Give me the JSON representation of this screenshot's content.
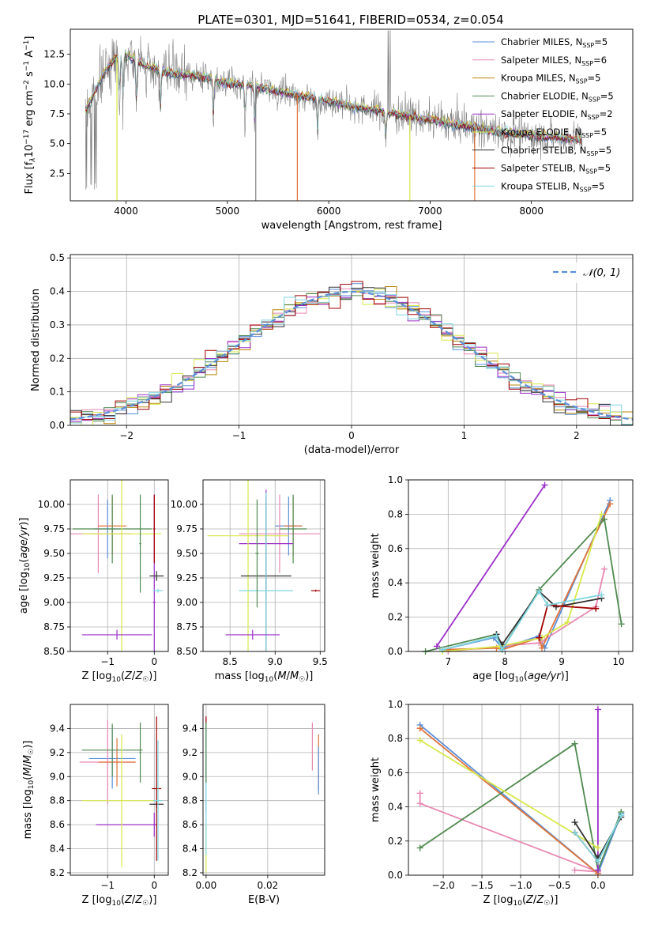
{
  "figure": {
    "title": "PLATE=0301, MJD=51641, FIBERID=0534, z=0.054"
  },
  "legend_entries": [
    {
      "name": "Chabrier MILES",
      "n_ssp": 5,
      "color": "#5b8fd9"
    },
    {
      "name": "Salpeter MILES",
      "n_ssp": 6,
      "color": "#e887b3"
    },
    {
      "name": "Kroupa MILES",
      "n_ssp": 5,
      "color": "#b8860b"
    },
    {
      "name": "Chabrier ELODIE",
      "n_ssp": 5,
      "color": "#4f8a4f"
    },
    {
      "name": "Salpeter ELODIE",
      "n_ssp": 2,
      "color": "#9b30c8"
    },
    {
      "name": "Kroupa ELODIE",
      "n_ssp": 5,
      "color": "#d8e84a"
    },
    {
      "name": "Chabrier STELIB",
      "n_ssp": 5,
      "color": "#333333"
    },
    {
      "name": "Salpeter STELIB",
      "n_ssp": 5,
      "color": "#a00000"
    },
    {
      "name": "Kroupa STELIB",
      "n_ssp": 5,
      "color": "#7dd6e0"
    }
  ],
  "chart_data": [
    {
      "id": "spectrum",
      "type": "line",
      "xlabel": "wavelength [Angstrom, rest frame]",
      "ylabel": "Flux [f_λ10^-17 erg cm^-2 s^-1 A^-1]",
      "xlim": [
        3450,
        9000
      ],
      "ylim": [
        0.2,
        14.6
      ],
      "xticks": [
        4000,
        5000,
        6000,
        7000,
        8000
      ],
      "yticks": [
        2.5,
        5.0,
        7.5,
        10.0,
        12.5
      ],
      "grid": false,
      "legend": "top-right",
      "data_color": "#808080",
      "continuum": [
        [
          3600,
          7.8
        ],
        [
          3650,
          8.6
        ],
        [
          3700,
          9.5
        ],
        [
          3800,
          11.2
        ],
        [
          3900,
          12.2
        ],
        [
          4000,
          12.4
        ],
        [
          4100,
          12.0
        ],
        [
          4200,
          11.5
        ],
        [
          4400,
          11.0
        ],
        [
          4600,
          10.8
        ],
        [
          4800,
          10.5
        ],
        [
          5000,
          10.1
        ],
        [
          5200,
          9.9
        ],
        [
          5400,
          9.6
        ],
        [
          5600,
          9.2
        ],
        [
          5800,
          8.9
        ],
        [
          6000,
          8.6
        ],
        [
          6200,
          8.2
        ],
        [
          6400,
          7.9
        ],
        [
          6600,
          7.6
        ],
        [
          6800,
          7.3
        ],
        [
          7000,
          7.0
        ],
        [
          7200,
          6.7
        ],
        [
          7400,
          6.4
        ],
        [
          7600,
          6.1
        ],
        [
          7800,
          5.9
        ],
        [
          8000,
          5.7
        ],
        [
          8200,
          5.6
        ],
        [
          8400,
          5.4
        ],
        [
          8500,
          5.3
        ]
      ],
      "absorption_lines": [
        3934,
        3969,
        4102,
        4340,
        4861,
        5175,
        5270,
        5890,
        6563
      ],
      "model_dips": [
        [
          3910,
          0.2,
          "#d8e84a"
        ],
        [
          5280,
          0.2,
          "#808080"
        ],
        [
          5690,
          0.2,
          "#e0733a"
        ],
        [
          6800,
          0.2,
          "#d8e84a"
        ],
        [
          7440,
          0.2,
          "#e0733a"
        ]
      ]
    },
    {
      "id": "residuals",
      "type": "line",
      "xlabel": "(data-model)/error",
      "ylabel": "Normed distribution",
      "xlim": [
        -2.5,
        2.5
      ],
      "ylim": [
        0,
        0.51
      ],
      "xticks": [
        -2,
        -1,
        0,
        1,
        2
      ],
      "yticks": [
        0.0,
        0.1,
        0.2,
        0.3,
        0.4,
        0.5
      ],
      "grid": true,
      "legend": "top-right",
      "legend_label": "𝒩(0, 1)",
      "normal_color": "#5b8fd9",
      "bin_width": 0.1
    },
    {
      "id": "age_vs_Z",
      "type": "scatter",
      "xlabel": "Z [log10(Z/Z☉)]",
      "ylabel": "age [log10(age/yr)]",
      "xlim": [
        -1.8,
        0.3
      ],
      "ylim": [
        8.5,
        10.25
      ],
      "xticks": [
        -1,
        0
      ],
      "yticks": [
        8.5,
        8.75,
        9.0,
        9.25,
        9.5,
        9.75,
        10.0
      ],
      "grid": true,
      "errorbars": [
        {
          "x": -1.0,
          "xerr": 0.3,
          "y": 9.75,
          "yerr": 0.3,
          "c": "#5b8fd9"
        },
        {
          "x": -1.2,
          "xerr": 0.7,
          "y": 9.7,
          "yerr": 0.4,
          "c": "#e887b3"
        },
        {
          "x": -0.9,
          "xerr": 0.3,
          "y": 9.78,
          "yerr": 0.3,
          "c": "#e0733a"
        },
        {
          "x": -0.9,
          "xerr": 0.85,
          "y": 9.75,
          "yerr": 0.35,
          "c": "#4f8a4f"
        },
        {
          "x": 0.0,
          "xerr": 0.03,
          "y": 9.0,
          "yerr": 1.1,
          "c": "#9b30c8"
        },
        {
          "x": -0.7,
          "xerr": 0.85,
          "y": 9.7,
          "yerr": 1.2,
          "c": "#d8e84a"
        },
        {
          "x": 0.05,
          "xerr": 0.15,
          "y": 9.27,
          "yerr": 0.05,
          "c": "#333333"
        },
        {
          "x": 0.0,
          "xerr": 0.02,
          "y": 9.75,
          "yerr": 0.35,
          "c": "#a00000"
        },
        {
          "x": 0.08,
          "xerr": 0.1,
          "y": 9.12,
          "yerr": 0.02,
          "c": "#7dd6e0"
        },
        {
          "x": -0.8,
          "xerr": 0.75,
          "y": 8.67,
          "yerr": 0.05,
          "c": "#9b30c8"
        },
        {
          "x": -0.3,
          "xerr": 0.02,
          "y": 9.6,
          "yerr": 0.5,
          "c": "#4f8a4f"
        }
      ]
    },
    {
      "id": "age_vs_mass",
      "type": "scatter",
      "xlabel": "mass [log10(M/M☉)]",
      "ylabel": "",
      "xlim": [
        8.2,
        9.55
      ],
      "ylim": [
        8.5,
        10.25
      ],
      "xticks": [
        8.5,
        9.0,
        9.5
      ],
      "yticks": [
        8.5,
        8.75,
        9.0,
        9.25,
        9.5,
        9.75,
        10.0
      ],
      "grid": true,
      "errorbars": [
        {
          "x": 9.15,
          "xerr": 0.15,
          "y": 9.78,
          "yerr": 0.3,
          "c": "#5b8fd9"
        },
        {
          "x": 9.05,
          "xerr": 0.45,
          "y": 9.7,
          "yerr": 0.4,
          "c": "#e887b3"
        },
        {
          "x": 9.2,
          "xerr": 0.1,
          "y": 9.78,
          "yerr": 0.3,
          "c": "#e0733a"
        },
        {
          "x": 9.2,
          "xerr": 0.15,
          "y": 9.75,
          "yerr": 0.35,
          "c": "#4f8a4f"
        },
        {
          "x": 8.9,
          "xerr": 0.3,
          "y": 9.6,
          "yerr": 0.55,
          "c": "#9b30c8"
        },
        {
          "x": 8.7,
          "xerr": 0.45,
          "y": 9.68,
          "yerr": 1.2,
          "c": "#d8e84a"
        },
        {
          "x": 8.9,
          "xerr": 0.28,
          "y": 9.27,
          "yerr": 0.8,
          "c": "#333333"
        },
        {
          "x": 9.45,
          "xerr": 0.05,
          "y": 9.12,
          "yerr": 0.01,
          "c": "#a00000"
        },
        {
          "x": 8.9,
          "xerr": 0.3,
          "y": 9.12,
          "yerr": 1.0,
          "c": "#7dd6e0"
        },
        {
          "x": 8.75,
          "xerr": 0.3,
          "y": 8.67,
          "yerr": 0.05,
          "c": "#9b30c8"
        },
        {
          "x": 8.8,
          "xerr": 0.02,
          "y": 9.5,
          "yerr": 0.55,
          "c": "#4f8a4f"
        }
      ]
    },
    {
      "id": "mass_weight_vs_age",
      "type": "line",
      "xlabel": "age [log10(age/yr)]",
      "ylabel": "mass weight",
      "xlim": [
        6.3,
        10.25
      ],
      "ylim": [
        0,
        1.0
      ],
      "xticks": [
        7,
        8,
        9,
        10
      ],
      "yticks": [
        0.0,
        0.2,
        0.4,
        0.6,
        0.8,
        1.0
      ],
      "grid": true,
      "series": [
        {
          "c": "#5b8fd9",
          "points": [
            [
              6.9,
              0.01
            ],
            [
              7.8,
              0.08
            ],
            [
              7.95,
              0.02
            ],
            [
              8.6,
              0.09
            ],
            [
              8.7,
              0.02
            ],
            [
              9.85,
              0.88
            ]
          ]
        },
        {
          "c": "#e887b3",
          "points": [
            [
              7.0,
              0.0
            ],
            [
              7.9,
              0.03
            ],
            [
              8.6,
              0.05
            ],
            [
              8.65,
              0.06
            ],
            [
              9.6,
              0.26
            ],
            [
              9.75,
              0.48
            ]
          ]
        },
        {
          "c": "#e0733a",
          "points": [
            [
              6.9,
              0.01
            ],
            [
              7.85,
              0.02
            ],
            [
              7.95,
              0.01
            ],
            [
              8.6,
              0.08
            ],
            [
              8.65,
              0.02
            ],
            [
              9.85,
              0.86
            ]
          ]
        },
        {
          "c": "#4f8a4f",
          "points": [
            [
              6.6,
              0.0
            ],
            [
              7.85,
              0.1
            ],
            [
              7.95,
              0.01
            ],
            [
              8.6,
              0.36
            ],
            [
              9.75,
              0.77
            ],
            [
              10.05,
              0.16
            ]
          ]
        },
        {
          "c": "#9b30c8",
          "points": [
            [
              6.8,
              0.03
            ],
            [
              8.7,
              0.97
            ]
          ]
        },
        {
          "c": "#d8e84a",
          "points": [
            [
              6.9,
              0.0
            ],
            [
              7.9,
              0.03
            ],
            [
              8.65,
              0.08
            ],
            [
              9.1,
              0.17
            ],
            [
              9.7,
              0.8
            ]
          ]
        },
        {
          "c": "#333333",
          "points": [
            [
              7.85,
              0.1
            ],
            [
              7.95,
              0.04
            ],
            [
              8.6,
              0.35
            ],
            [
              8.9,
              0.26
            ],
            [
              9.7,
              0.31
            ]
          ]
        },
        {
          "c": "#a00000",
          "points": [
            [
              8.6,
              0.08
            ],
            [
              8.75,
              0.27
            ],
            [
              9.6,
              0.25
            ]
          ]
        },
        {
          "c": "#7dd6e0",
          "points": [
            [
              6.9,
              0.01
            ],
            [
              7.85,
              0.09
            ],
            [
              7.95,
              0.01
            ],
            [
              8.6,
              0.35
            ],
            [
              8.75,
              0.27
            ],
            [
              9.7,
              0.33
            ]
          ]
        }
      ]
    },
    {
      "id": "mass_vs_Z",
      "type": "scatter",
      "xlabel": "Z [log10(Z/Z☉)]",
      "ylabel": "mass [log10(M/M☉)]",
      "xlim": [
        -1.8,
        0.3
      ],
      "ylim": [
        8.18,
        9.6
      ],
      "xticks": [
        -1,
        0
      ],
      "yticks": [
        8.2,
        8.4,
        8.6,
        8.8,
        9.0,
        9.2,
        9.4
      ],
      "grid": true,
      "errorbars": [
        {
          "x": -0.9,
          "xerr": 0.5,
          "y": 9.15,
          "yerr": 0.25,
          "c": "#5b8fd9"
        },
        {
          "x": -1.0,
          "xerr": 0.6,
          "y": 9.12,
          "yerr": 0.35,
          "c": "#e887b3"
        },
        {
          "x": -0.8,
          "xerr": 0.4,
          "y": 9.12,
          "yerr": 0.2,
          "c": "#e0733a"
        },
        {
          "x": -0.9,
          "xerr": 0.65,
          "y": 9.22,
          "yerr": 0.22,
          "c": "#4f8a4f"
        },
        {
          "x": -0.6,
          "xerr": 0.65,
          "y": 8.6,
          "yerr": 0.0,
          "c": "#9b30c8"
        },
        {
          "x": -0.7,
          "xerr": 0.85,
          "y": 8.8,
          "yerr": 0.55,
          "c": "#d8e84a"
        },
        {
          "x": 0.05,
          "xerr": 0.15,
          "y": 8.77,
          "yerr": 0.03,
          "c": "#333333"
        },
        {
          "x": 0.05,
          "xerr": 0.1,
          "y": 8.9,
          "yerr": 0.6,
          "c": "#a00000"
        },
        {
          "x": 0.08,
          "xerr": 0.1,
          "y": 8.8,
          "yerr": 0.5,
          "c": "#7dd6e0"
        },
        {
          "x": -0.3,
          "xerr": 0.02,
          "y": 9.2,
          "yerr": 0.25,
          "c": "#4f8a4f"
        },
        {
          "x": 0.0,
          "xerr": 0.02,
          "y": 8.6,
          "yerr": 0.1,
          "c": "#9b30c8"
        }
      ]
    },
    {
      "id": "mass_vs_ebv",
      "type": "scatter",
      "xlabel": "E(B-V)",
      "ylabel": "",
      "xlim": [
        -0.001,
        0.0385
      ],
      "ylim": [
        8.18,
        9.6
      ],
      "xticks": [
        0.0,
        0.02
      ],
      "yticks": [
        8.2,
        8.4,
        8.6,
        8.8,
        9.0,
        9.2,
        9.4
      ],
      "grid": true,
      "errorbars": [
        {
          "x": 0.0,
          "xerr": 0,
          "y": 9.1,
          "yerr": 0.4,
          "c": "#5b8fd9"
        },
        {
          "x": 0.0,
          "xerr": 0,
          "y": 8.4,
          "yerr": 0.2,
          "c": "#d8e84a"
        },
        {
          "x": 0.0,
          "xerr": 0,
          "y": 9.45,
          "yerr": 0.05,
          "c": "#a00000"
        },
        {
          "x": 0.0,
          "xerr": 0,
          "y": 8.9,
          "yerr": 0.55,
          "c": "#7dd6e0"
        },
        {
          "x": 0.0,
          "xerr": 0,
          "y": 9.2,
          "yerr": 0.25,
          "c": "#4f8a4f"
        },
        {
          "x": 0.0345,
          "xerr": 0,
          "y": 9.25,
          "yerr": 0.2,
          "c": "#e887b3"
        },
        {
          "x": 0.0365,
          "xerr": 0,
          "y": 9.12,
          "yerr": 0.23,
          "c": "#e0733a"
        },
        {
          "x": 0.0365,
          "xerr": 0,
          "y": 9.05,
          "yerr": 0.2,
          "c": "#5b8fd9"
        }
      ]
    },
    {
      "id": "mass_weight_vs_Z",
      "type": "line",
      "xlabel": "Z [log10(Z/Z☉)]",
      "ylabel": "mass weight",
      "xlim": [
        -2.45,
        0.45
      ],
      "ylim": [
        0,
        1.0
      ],
      "xticks": [
        -2.0,
        -1.5,
        -1.0,
        -0.5,
        0.0
      ],
      "yticks": [
        0.0,
        0.2,
        0.4,
        0.6,
        0.8,
        1.0
      ],
      "grid": true,
      "series": [
        {
          "c": "#5b8fd9",
          "points": [
            [
              -2.3,
              0.88
            ],
            [
              0.0,
              0.01
            ],
            [
              0.3,
              0.36
            ]
          ]
        },
        {
          "c": "#e887b3",
          "points": [
            [
              -2.3,
              0.48
            ],
            [
              -2.3,
              0.42
            ],
            [
              0.0,
              0.02
            ],
            [
              -0.3,
              0.03
            ]
          ]
        },
        {
          "c": "#e0733a",
          "points": [
            [
              -2.3,
              0.86
            ],
            [
              0.0,
              0.01
            ]
          ]
        },
        {
          "c": "#4f8a4f",
          "points": [
            [
              -2.3,
              0.16
            ],
            [
              -0.3,
              0.77
            ],
            [
              0.0,
              0.03
            ],
            [
              0.3,
              0.37
            ]
          ]
        },
        {
          "c": "#9b30c8",
          "points": [
            [
              0.0,
              0.97
            ],
            [
              0.0,
              0.03
            ]
          ]
        },
        {
          "c": "#d8e84a",
          "points": [
            [
              -2.3,
              0.79
            ],
            [
              0.0,
              0.16
            ]
          ]
        },
        {
          "c": "#333333",
          "points": [
            [
              -0.3,
              0.31
            ],
            [
              0.0,
              0.1
            ],
            [
              0.3,
              0.34
            ]
          ]
        },
        {
          "c": "#a00000",
          "points": [
            [
              -0.3,
              0.25
            ],
            [
              0.0,
              0.08
            ]
          ]
        },
        {
          "c": "#7dd6e0",
          "points": [
            [
              -0.3,
              0.25
            ],
            [
              0.0,
              0.08
            ],
            [
              0.3,
              0.35
            ]
          ]
        }
      ]
    }
  ]
}
